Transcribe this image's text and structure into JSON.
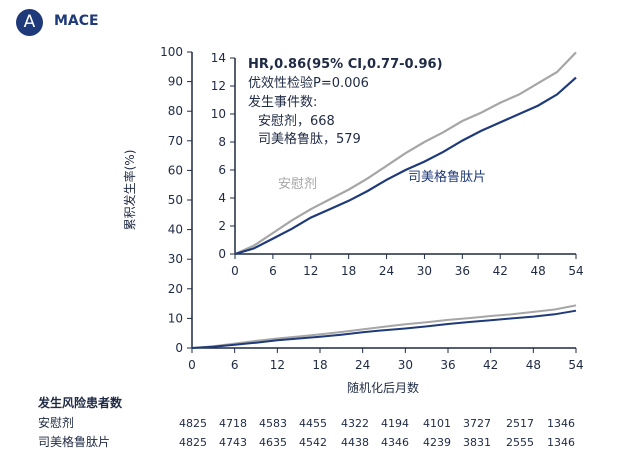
{
  "panel": {
    "letter": "A",
    "title": "MACE"
  },
  "colors": {
    "placebo": "#a6a6a6",
    "semaglutide": "#1f3a7a",
    "axis": "#1f2a44",
    "badge": "#1f3a7a"
  },
  "chart_data": {
    "type": "line",
    "xlabel": "随机化后月数",
    "ylabel": "累积发生率(%)",
    "x_ticks": [
      0,
      6,
      12,
      18,
      24,
      30,
      36,
      42,
      48,
      54
    ],
    "main": {
      "ylim": [
        0,
        100
      ],
      "y_ticks": [
        0,
        10,
        20,
        30,
        40,
        50,
        60,
        70,
        80,
        90,
        100
      ]
    },
    "inset": {
      "ylim": [
        0,
        14
      ],
      "y_ticks": [
        0,
        2,
        4,
        6,
        8,
        10,
        12,
        14
      ],
      "xlim": [
        0,
        54
      ]
    },
    "series": [
      {
        "name": "安慰剂",
        "points": [
          [
            0,
            0
          ],
          [
            3,
            0.6
          ],
          [
            6,
            1.5
          ],
          [
            9,
            2.4
          ],
          [
            12,
            3.2
          ],
          [
            15,
            3.9
          ],
          [
            18,
            4.6
          ],
          [
            21,
            5.4
          ],
          [
            24,
            6.3
          ],
          [
            27,
            7.2
          ],
          [
            30,
            8.0
          ],
          [
            33,
            8.7
          ],
          [
            36,
            9.5
          ],
          [
            39,
            10.1
          ],
          [
            42,
            10.8
          ],
          [
            45,
            11.4
          ],
          [
            48,
            12.2
          ],
          [
            51,
            13.0
          ],
          [
            54,
            14.4
          ]
        ]
      },
      {
        "name": "司美格鲁肽片",
        "points": [
          [
            0,
            0
          ],
          [
            3,
            0.4
          ],
          [
            6,
            1.1
          ],
          [
            9,
            1.8
          ],
          [
            12,
            2.6
          ],
          [
            15,
            3.2
          ],
          [
            18,
            3.8
          ],
          [
            21,
            4.5
          ],
          [
            24,
            5.3
          ],
          [
            27,
            6.0
          ],
          [
            30,
            6.6
          ],
          [
            33,
            7.3
          ],
          [
            36,
            8.1
          ],
          [
            39,
            8.8
          ],
          [
            42,
            9.4
          ],
          [
            45,
            10.0
          ],
          [
            48,
            10.6
          ],
          [
            51,
            11.4
          ],
          [
            54,
            12.6
          ]
        ]
      }
    ],
    "annotations": {
      "hr": "HR,0.86(95% CI,0.77-0.96)",
      "p": "优效性检验P=0.006",
      "events_title": "发生事件数:",
      "placebo_events": "安慰剂，668",
      "sema_events": "司美格鲁肽，579",
      "placebo_label": "安慰剂",
      "sema_label": "司美格鲁肽片"
    }
  },
  "risk_table": {
    "title": "发生风险患者数",
    "rows": [
      {
        "label": "安慰剂",
        "values": [
          "4825",
          "4718",
          "4583",
          "4455",
          "4322",
          "4194",
          "4101",
          "3727",
          "2517",
          "1346"
        ]
      },
      {
        "label": "司美格鲁肽片",
        "values": [
          "4825",
          "4743",
          "4635",
          "4542",
          "4438",
          "4346",
          "4239",
          "3831",
          "2555",
          "1346"
        ]
      }
    ]
  }
}
